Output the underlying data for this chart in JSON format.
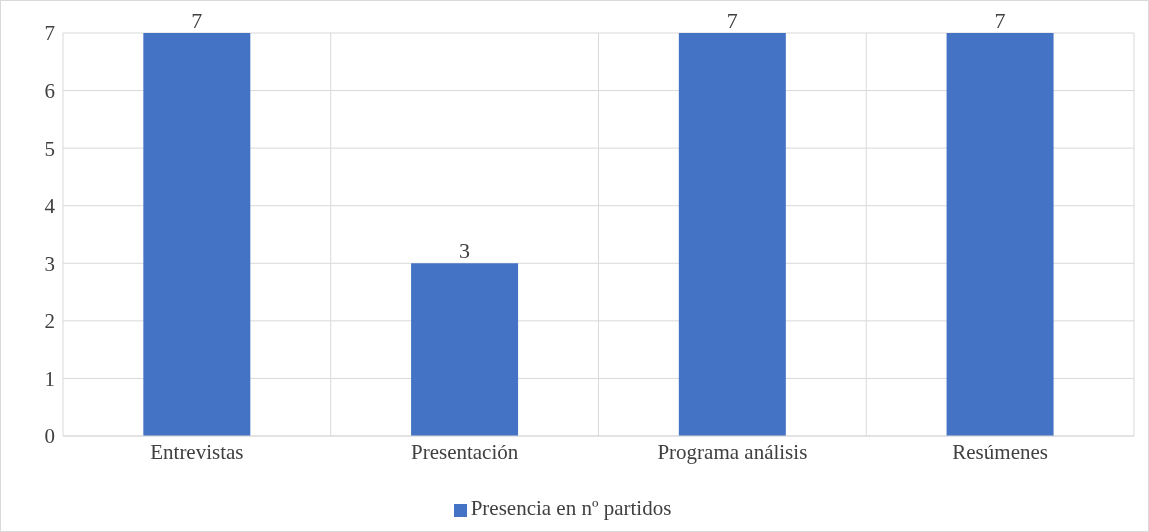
{
  "chart_data": {
    "type": "bar",
    "categories": [
      "Entrevistas",
      "Presentación",
      "Programa análisis",
      "Resúmenes"
    ],
    "series": [
      {
        "name": "Presencia en nº partidos",
        "color": "#4472c4",
        "values": [
          7,
          3,
          7,
          7
        ]
      }
    ],
    "ylim": [
      0,
      7
    ],
    "yticks": [
      0,
      1,
      2,
      3,
      4,
      5,
      6,
      7
    ],
    "grid": true,
    "legend": "bottom",
    "data_labels": true
  }
}
